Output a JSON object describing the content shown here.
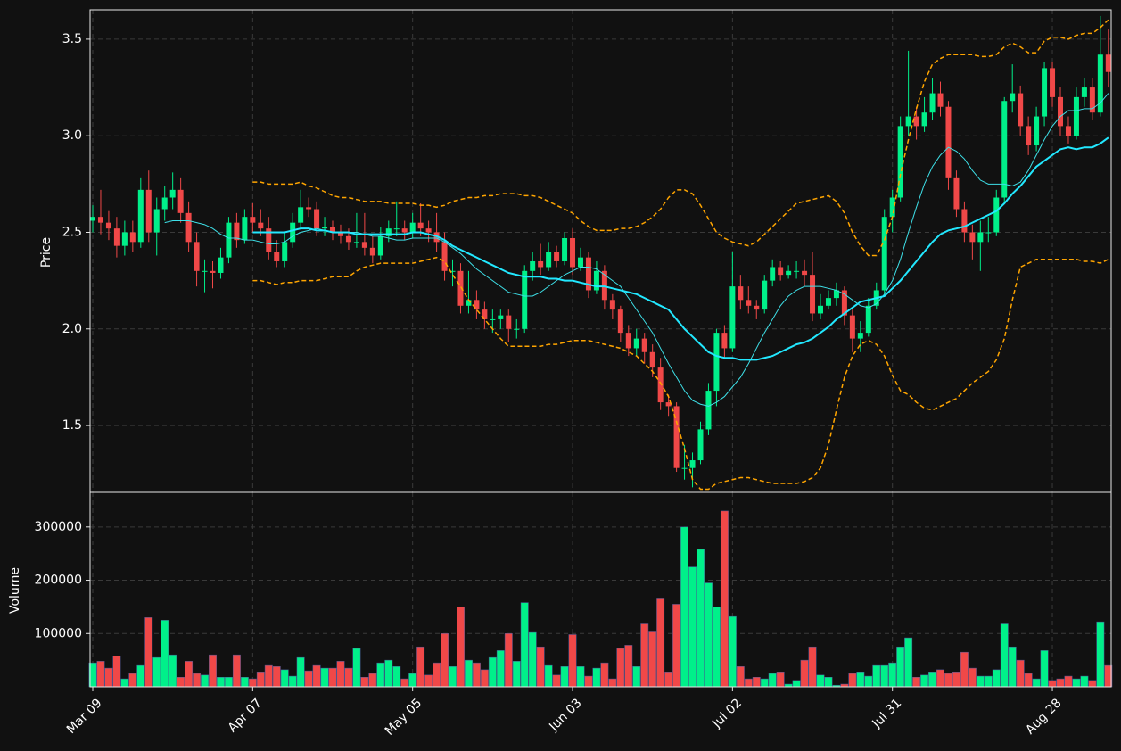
{
  "chart_data": {
    "type": "candlestick",
    "ylabel": "Price",
    "categories": [
      "Mar 09",
      null,
      null,
      null,
      null,
      null,
      null,
      null,
      null,
      null,
      null,
      null,
      null,
      null,
      null,
      null,
      null,
      null,
      null,
      null,
      "Apr 07",
      null,
      null,
      null,
      null,
      null,
      null,
      null,
      null,
      null,
      null,
      null,
      null,
      null,
      null,
      null,
      null,
      null,
      null,
      null,
      "May 05",
      null,
      null,
      null,
      null,
      null,
      null,
      null,
      null,
      null,
      null,
      null,
      null,
      null,
      null,
      null,
      null,
      null,
      null,
      null,
      "Jun 03",
      null,
      null,
      null,
      null,
      null,
      null,
      null,
      null,
      null,
      null,
      null,
      null,
      null,
      null,
      null,
      null,
      null,
      null,
      null,
      "Jul 02",
      null,
      null,
      null,
      null,
      null,
      null,
      null,
      null,
      null,
      null,
      null,
      null,
      null,
      null,
      null,
      null,
      null,
      null,
      null,
      "Jul 31",
      null,
      null,
      null,
      null,
      null,
      null,
      null,
      null,
      null,
      null,
      null,
      null,
      null,
      null,
      null,
      null,
      null,
      null,
      null,
      "Aug 28",
      null,
      null,
      null,
      null,
      null,
      null,
      null
    ],
    "open": [
      2.56,
      2.58,
      2.55,
      2.52,
      2.43,
      2.5,
      2.45,
      2.72,
      2.5,
      2.62,
      2.68,
      2.72,
      2.6,
      2.45,
      2.3,
      2.3,
      2.29,
      2.37,
      2.55,
      2.46,
      2.58,
      2.55,
      2.52,
      2.4,
      2.35,
      2.45,
      2.55,
      2.63,
      2.62,
      2.52,
      2.53,
      2.5,
      2.48,
      2.45,
      2.45,
      2.42,
      2.38,
      2.48,
      2.52,
      2.52,
      2.5,
      2.55,
      2.52,
      2.5,
      2.45,
      2.3,
      2.3,
      2.12,
      2.15,
      2.1,
      2.05,
      2.05,
      2.07,
      2.0,
      2.0,
      2.3,
      2.35,
      2.32,
      2.4,
      2.35,
      2.47,
      2.32,
      2.37,
      2.2,
      2.3,
      2.15,
      2.1,
      1.98,
      1.9,
      1.95,
      1.88,
      1.8,
      1.62,
      1.6,
      1.28,
      1.28,
      1.32,
      1.48,
      1.68,
      1.98,
      1.9,
      2.22,
      2.15,
      2.12,
      2.1,
      2.25,
      2.32,
      2.28,
      2.3,
      2.3,
      2.28,
      2.08,
      2.12,
      2.16,
      2.2,
      2.07,
      1.95,
      1.98,
      2.12,
      2.2,
      2.58,
      2.68,
      3.05,
      3.1,
      3.05,
      3.12,
      3.22,
      3.15,
      2.78,
      2.62,
      2.5,
      2.45,
      2.5,
      2.5,
      2.68,
      3.18,
      3.22,
      3.05,
      2.95,
      3.1,
      3.35,
      3.2,
      3.05,
      3.0,
      3.2,
      3.25,
      3.12,
      3.42
    ],
    "high": [
      2.64,
      2.72,
      2.61,
      2.58,
      2.56,
      2.56,
      2.78,
      2.82,
      2.68,
      2.74,
      2.81,
      2.78,
      2.66,
      2.5,
      2.36,
      2.35,
      2.42,
      2.58,
      2.6,
      2.62,
      2.65,
      2.62,
      2.58,
      2.46,
      2.5,
      2.6,
      2.72,
      2.68,
      2.66,
      2.58,
      2.56,
      2.54,
      2.52,
      2.6,
      2.6,
      2.48,
      2.53,
      2.56,
      2.66,
      2.56,
      2.6,
      2.65,
      2.56,
      2.6,
      2.5,
      2.36,
      2.34,
      2.3,
      2.2,
      2.14,
      2.1,
      2.1,
      2.1,
      2.05,
      2.33,
      2.4,
      2.44,
      2.45,
      2.43,
      2.5,
      2.52,
      2.42,
      2.4,
      2.35,
      2.33,
      2.18,
      2.12,
      2.02,
      2.0,
      1.98,
      1.92,
      1.85,
      1.66,
      1.62,
      1.4,
      1.36,
      1.52,
      1.72,
      2.0,
      2.02,
      2.4,
      2.28,
      2.22,
      2.15,
      2.28,
      2.36,
      2.35,
      2.33,
      2.35,
      2.36,
      2.4,
      2.18,
      2.2,
      2.24,
      2.22,
      2.1,
      2.04,
      2.16,
      2.24,
      2.62,
      2.72,
      3.1,
      3.44,
      3.15,
      3.2,
      3.3,
      3.28,
      3.18,
      2.82,
      2.66,
      2.54,
      2.56,
      2.58,
      2.72,
      3.2,
      3.37,
      3.26,
      3.1,
      3.15,
      3.38,
      3.38,
      3.25,
      3.1,
      3.25,
      3.3,
      3.3,
      3.62,
      3.55
    ],
    "low": [
      2.5,
      2.49,
      2.46,
      2.37,
      2.38,
      2.4,
      2.42,
      2.45,
      2.38,
      2.56,
      2.62,
      2.55,
      2.4,
      2.22,
      2.19,
      2.21,
      2.26,
      2.34,
      2.42,
      2.44,
      2.5,
      2.48,
      2.36,
      2.32,
      2.32,
      2.42,
      2.52,
      2.58,
      2.48,
      2.48,
      2.46,
      2.44,
      2.41,
      2.42,
      2.38,
      2.34,
      2.36,
      2.45,
      2.48,
      2.46,
      2.47,
      2.48,
      2.45,
      2.4,
      2.25,
      2.22,
      2.08,
      2.08,
      2.05,
      2.0,
      1.98,
      2.0,
      1.93,
      1.95,
      1.98,
      2.25,
      2.28,
      2.3,
      2.32,
      2.33,
      2.28,
      2.3,
      2.16,
      2.18,
      2.1,
      2.05,
      1.93,
      1.86,
      1.86,
      1.82,
      1.75,
      1.58,
      1.55,
      1.26,
      1.22,
      1.18,
      1.3,
      1.45,
      1.6,
      1.85,
      1.88,
      2.1,
      2.08,
      2.05,
      2.08,
      2.22,
      2.25,
      2.26,
      2.26,
      2.22,
      2.04,
      2.05,
      2.1,
      2.12,
      2.02,
      1.88,
      1.88,
      1.96,
      2.1,
      2.18,
      2.5,
      2.66,
      3.0,
      2.98,
      3.02,
      3.08,
      3.1,
      2.72,
      2.58,
      2.45,
      2.36,
      2.3,
      2.45,
      2.48,
      2.65,
      3.12,
      3.0,
      2.9,
      2.92,
      3.05,
      3.15,
      3.0,
      2.96,
      2.98,
      3.15,
      3.08,
      3.1,
      3.25
    ],
    "close": [
      2.58,
      2.55,
      2.52,
      2.43,
      2.5,
      2.45,
      2.72,
      2.5,
      2.62,
      2.68,
      2.72,
      2.6,
      2.45,
      2.3,
      2.3,
      2.29,
      2.37,
      2.55,
      2.46,
      2.58,
      2.55,
      2.52,
      2.4,
      2.35,
      2.45,
      2.55,
      2.63,
      2.62,
      2.52,
      2.53,
      2.5,
      2.48,
      2.45,
      2.45,
      2.42,
      2.38,
      2.48,
      2.52,
      2.52,
      2.5,
      2.55,
      2.52,
      2.5,
      2.45,
      2.3,
      2.3,
      2.12,
      2.15,
      2.1,
      2.05,
      2.05,
      2.07,
      2.0,
      2.0,
      2.3,
      2.35,
      2.32,
      2.4,
      2.35,
      2.47,
      2.32,
      2.37,
      2.2,
      2.3,
      2.15,
      2.1,
      1.98,
      1.9,
      1.95,
      1.88,
      1.8,
      1.62,
      1.6,
      1.28,
      1.28,
      1.32,
      1.48,
      1.68,
      1.98,
      1.9,
      2.22,
      2.15,
      2.12,
      2.1,
      2.25,
      2.32,
      2.28,
      2.3,
      2.3,
      2.28,
      2.08,
      2.12,
      2.16,
      2.2,
      2.07,
      1.95,
      1.98,
      2.12,
      2.2,
      2.58,
      2.68,
      3.05,
      3.1,
      3.05,
      3.12,
      3.22,
      3.15,
      2.78,
      2.62,
      2.5,
      2.45,
      2.5,
      2.5,
      2.68,
      3.18,
      3.22,
      3.05,
      2.95,
      3.1,
      3.35,
      3.2,
      3.05,
      3.0,
      3.2,
      3.25,
      3.12,
      3.42,
      3.33
    ],
    "up_color": "#00f08a",
    "down_color": "#f04848",
    "ylim": [
      1.154,
      3.652
    ],
    "yticks": [
      1.5,
      {
        "value": 2,
        "label": "2.0"
      },
      2.5,
      {
        "value": 3,
        "label": "3.0"
      },
      3.5
    ],
    "grid": true,
    "overlays": [
      {
        "color": "#3ee0e8",
        "linewidth": 1,
        "linestyle": "solid",
        "values": [
          null,
          null,
          null,
          null,
          null,
          null,
          null,
          null,
          null,
          2.55,
          2.56,
          2.56,
          2.56,
          2.55,
          2.54,
          2.52,
          2.49,
          2.47,
          2.47,
          2.46,
          2.46,
          2.45,
          2.44,
          2.44,
          2.45,
          2.48,
          2.5,
          2.51,
          2.52,
          2.51,
          2.5,
          2.5,
          2.5,
          2.5,
          2.49,
          2.48,
          2.48,
          2.47,
          2.46,
          2.46,
          2.47,
          2.47,
          2.47,
          2.47,
          2.45,
          2.42,
          2.39,
          2.35,
          2.31,
          2.28,
          2.25,
          2.22,
          2.19,
          2.18,
          2.17,
          2.17,
          2.19,
          2.22,
          2.25,
          2.28,
          2.3,
          2.32,
          2.32,
          2.31,
          2.28,
          2.25,
          2.22,
          2.16,
          2.1,
          2.04,
          1.98,
          1.9,
          1.82,
          1.75,
          1.68,
          1.63,
          1.61,
          1.6,
          1.62,
          1.65,
          1.7,
          1.75,
          1.82,
          1.9,
          1.98,
          2.05,
          2.12,
          2.17,
          2.2,
          2.22,
          2.22,
          2.22,
          2.21,
          2.2,
          2.18,
          2.15,
          2.12,
          2.11,
          2.13,
          2.18,
          2.25,
          2.36,
          2.5,
          2.63,
          2.75,
          2.84,
          2.9,
          2.94,
          2.92,
          2.88,
          2.82,
          2.77,
          2.75,
          2.75,
          2.75,
          2.74,
          2.76,
          2.82,
          2.9,
          2.98,
          3.05,
          3.1,
          3.13,
          3.13,
          3.14,
          3.14,
          3.17,
          3.22
        ]
      },
      {
        "color": "#22e8ff",
        "linewidth": 2,
        "linestyle": "solid",
        "values": [
          null,
          null,
          null,
          null,
          null,
          null,
          null,
          null,
          null,
          null,
          null,
          null,
          null,
          null,
          null,
          null,
          null,
          null,
          null,
          null,
          2.5,
          2.5,
          2.5,
          2.5,
          2.5,
          2.51,
          2.52,
          2.52,
          2.51,
          2.51,
          2.5,
          2.5,
          2.5,
          2.49,
          2.49,
          2.49,
          2.49,
          2.49,
          2.49,
          2.49,
          2.5,
          2.5,
          2.49,
          2.48,
          2.46,
          2.43,
          2.41,
          2.39,
          2.37,
          2.35,
          2.33,
          2.31,
          2.29,
          2.28,
          2.27,
          2.27,
          2.27,
          2.26,
          2.26,
          2.25,
          2.25,
          2.24,
          2.23,
          2.22,
          2.22,
          2.21,
          2.2,
          2.19,
          2.18,
          2.16,
          2.14,
          2.12,
          2.1,
          2.05,
          2.0,
          1.96,
          1.92,
          1.88,
          1.86,
          1.85,
          1.85,
          1.84,
          1.84,
          1.84,
          1.85,
          1.86,
          1.88,
          1.9,
          1.92,
          1.93,
          1.95,
          1.98,
          2.01,
          2.05,
          2.08,
          2.11,
          2.14,
          2.15,
          2.16,
          2.17,
          2.21,
          2.25,
          2.3,
          2.35,
          2.4,
          2.45,
          2.49,
          2.51,
          2.52,
          2.53,
          2.55,
          2.57,
          2.59,
          2.61,
          2.65,
          2.7,
          2.74,
          2.79,
          2.84,
          2.87,
          2.9,
          2.93,
          2.94,
          2.93,
          2.94,
          2.94,
          2.96,
          2.99
        ]
      },
      {
        "color": "#ffa500",
        "linewidth": 1.5,
        "linestyle": "dashed",
        "values": [
          null,
          null,
          null,
          null,
          null,
          null,
          null,
          null,
          null,
          null,
          null,
          null,
          null,
          null,
          null,
          null,
          null,
          null,
          null,
          null,
          2.76,
          2.76,
          2.75,
          2.75,
          2.75,
          2.75,
          2.76,
          2.74,
          2.73,
          2.71,
          2.69,
          2.68,
          2.68,
          2.67,
          2.66,
          2.66,
          2.66,
          2.65,
          2.65,
          2.65,
          2.65,
          2.64,
          2.64,
          2.63,
          2.64,
          2.66,
          2.67,
          2.68,
          2.68,
          2.69,
          2.69,
          2.7,
          2.7,
          2.7,
          2.69,
          2.69,
          2.68,
          2.66,
          2.64,
          2.62,
          2.6,
          2.56,
          2.53,
          2.51,
          2.51,
          2.51,
          2.52,
          2.52,
          2.53,
          2.55,
          2.58,
          2.62,
          2.68,
          2.72,
          2.72,
          2.7,
          2.64,
          2.57,
          2.5,
          2.47,
          2.45,
          2.44,
          2.43,
          2.45,
          2.49,
          2.53,
          2.57,
          2.61,
          2.65,
          2.66,
          2.67,
          2.68,
          2.69,
          2.66,
          2.6,
          2.5,
          2.43,
          2.38,
          2.38,
          2.46,
          2.58,
          2.8,
          2.98,
          3.14,
          3.28,
          3.37,
          3.4,
          3.42,
          3.42,
          3.42,
          3.42,
          3.41,
          3.41,
          3.42,
          3.46,
          3.48,
          3.46,
          3.43,
          3.43,
          3.49,
          3.51,
          3.51,
          3.5,
          3.52,
          3.53,
          3.53,
          3.56,
          3.6
        ]
      },
      {
        "color": "#ffa500",
        "linewidth": 1.5,
        "linestyle": "dashed",
        "values": [
          null,
          null,
          null,
          null,
          null,
          null,
          null,
          null,
          null,
          null,
          null,
          null,
          null,
          null,
          null,
          null,
          null,
          null,
          null,
          null,
          2.25,
          2.25,
          2.24,
          2.23,
          2.24,
          2.24,
          2.25,
          2.25,
          2.25,
          2.26,
          2.27,
          2.27,
          2.27,
          2.3,
          2.32,
          2.33,
          2.34,
          2.34,
          2.34,
          2.34,
          2.34,
          2.35,
          2.36,
          2.37,
          2.35,
          2.28,
          2.22,
          2.15,
          2.1,
          2.05,
          2.0,
          1.95,
          1.91,
          1.91,
          1.91,
          1.91,
          1.91,
          1.92,
          1.92,
          1.93,
          1.94,
          1.94,
          1.94,
          1.93,
          1.92,
          1.91,
          1.9,
          1.88,
          1.86,
          1.82,
          1.78,
          1.72,
          1.65,
          1.52,
          1.38,
          1.22,
          1.17,
          1.17,
          1.2,
          1.21,
          1.22,
          1.23,
          1.23,
          1.22,
          1.21,
          1.2,
          1.2,
          1.2,
          1.2,
          1.21,
          1.23,
          1.28,
          1.4,
          1.58,
          1.75,
          1.86,
          1.92,
          1.94,
          1.92,
          1.86,
          1.76,
          1.68,
          1.66,
          1.62,
          1.59,
          1.58,
          1.6,
          1.62,
          1.64,
          1.68,
          1.72,
          1.75,
          1.78,
          1.84,
          1.95,
          2.15,
          2.32,
          2.34,
          2.36,
          2.36,
          2.36,
          2.36,
          2.36,
          2.36,
          2.35,
          2.35,
          2.34,
          2.36
        ]
      }
    ],
    "volume": {
      "ylabel": "Volume",
      "values": [
        45000,
        48000,
        35000,
        58000,
        15000,
        25000,
        40000,
        130000,
        55000,
        125000,
        60000,
        18000,
        48000,
        25000,
        22000,
        60000,
        18000,
        18000,
        60000,
        18000,
        15000,
        28000,
        40000,
        38000,
        32000,
        20000,
        55000,
        30000,
        40000,
        35000,
        35000,
        48000,
        35000,
        72000,
        18000,
        25000,
        45000,
        50000,
        38000,
        15000,
        25000,
        75000,
        22000,
        45000,
        100000,
        38000,
        150000,
        50000,
        45000,
        32000,
        55000,
        68000,
        100000,
        48000,
        158000,
        102000,
        75000,
        40000,
        22000,
        38000,
        98000,
        38000,
        20000,
        35000,
        45000,
        15000,
        72000,
        78000,
        38000,
        118000,
        103000,
        165000,
        28000,
        155000,
        300000,
        225000,
        258000,
        195000,
        150000,
        330000,
        132000,
        38000,
        15000,
        18000,
        15000,
        25000,
        28000,
        5000,
        12000,
        50000,
        75000,
        22000,
        18000,
        3000,
        5000,
        25000,
        28000,
        20000,
        40000,
        40000,
        45000,
        75000,
        92000,
        18000,
        22000,
        28000,
        32000,
        25000,
        28000,
        65000,
        35000,
        20000,
        20000,
        32000,
        118000,
        75000,
        50000,
        25000,
        15000,
        68000,
        12000,
        15000,
        20000,
        15000,
        20000,
        12000,
        122000,
        40000
      ],
      "ylim": [
        0,
        365000
      ],
      "yticks": [
        100000,
        200000,
        300000
      ]
    }
  }
}
